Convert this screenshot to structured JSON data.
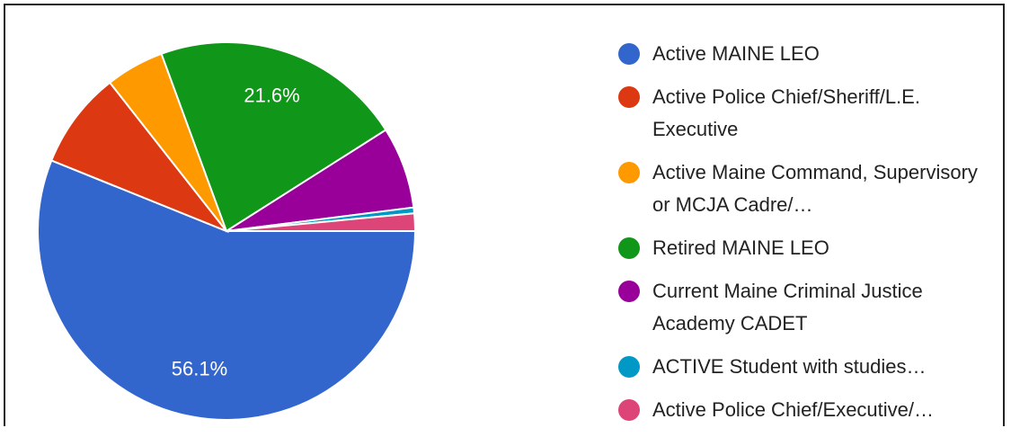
{
  "chart_data": {
    "type": "pie",
    "categories": [
      "Active MAINE LEO",
      "Active Police Chief/Sheriff/L.E. Executive",
      "Active Maine Command, Supervisory or MCJA Cadre/…",
      "Retired MAINE LEO",
      "Current Maine Criminal Justice Academy CADET",
      "ACTIVE Student with studies…",
      "Active Police Chief/Executive/…"
    ],
    "values": [
      56.1,
      8.3,
      5,
      21.6,
      7,
      0.5,
      1.5
    ],
    "value_labels": [
      "56.1%",
      null,
      null,
      "21.6%",
      null,
      null,
      null
    ],
    "colors": [
      "#3366cc",
      "#dc3912",
      "#ff9900",
      "#109618",
      "#990099",
      "#0099c6",
      "#dd4477"
    ],
    "legend": "right"
  }
}
